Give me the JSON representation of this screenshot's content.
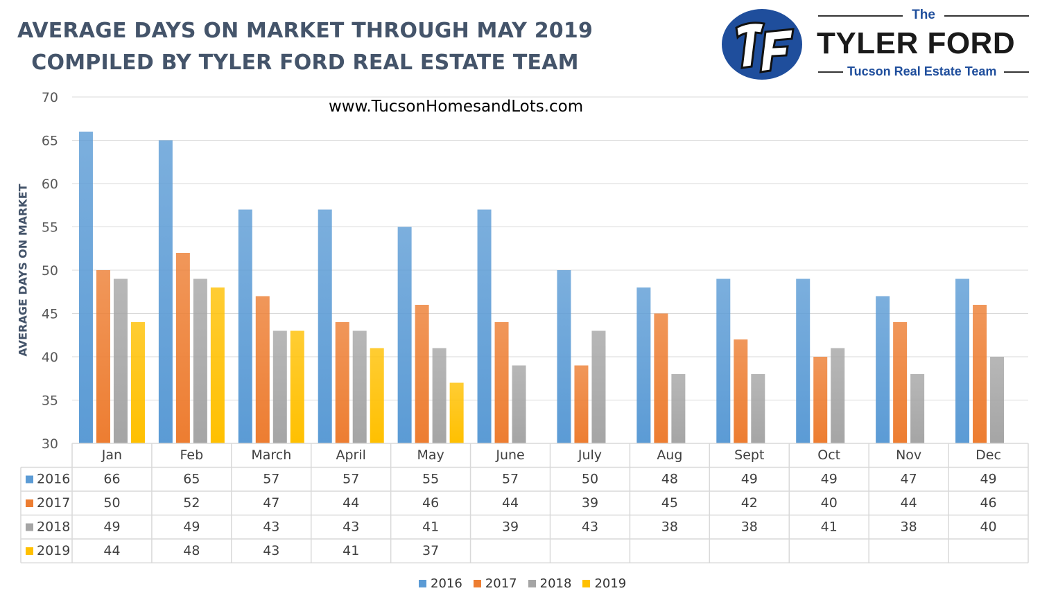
{
  "header": {
    "title_line1": "AVERAGE DAYS ON MARKET THROUGH MAY 2019",
    "title_line2": "COMPILED BY TYLER FORD REAL ESTATE TEAM",
    "website": "www.TucsonHomesandLots.com"
  },
  "brand": {
    "monogram": "TF",
    "the": "The",
    "name": "TYLER FORD",
    "subtitle": "Tucson Real Estate Team",
    "colors": {
      "circle": "#1f4e9c",
      "text_blue": "#1f4e9c",
      "name": "#1a1a1a"
    }
  },
  "chart_data": {
    "type": "bar",
    "ylabel": "AVERAGE DAYS ON MARKET",
    "xlabel": "",
    "ylim": [
      30,
      70
    ],
    "yticks": [
      30,
      35,
      40,
      45,
      50,
      55,
      60,
      65,
      70
    ],
    "grid": true,
    "legend_position": "bottom",
    "data_table": true,
    "categories": [
      "Jan",
      "Feb",
      "March",
      "April",
      "May",
      "June",
      "July",
      "Aug",
      "Sept",
      "Oct",
      "Nov",
      "Dec"
    ],
    "series": [
      {
        "name": "2016",
        "color": "#5b9bd5",
        "values": [
          66,
          65,
          57,
          57,
          55,
          57,
          50,
          48,
          49,
          49,
          47,
          49
        ]
      },
      {
        "name": "2017",
        "color": "#ed7d31",
        "values": [
          50,
          52,
          47,
          44,
          46,
          44,
          39,
          45,
          42,
          40,
          44,
          46
        ]
      },
      {
        "name": "2018",
        "color": "#a5a5a5",
        "values": [
          49,
          49,
          43,
          43,
          41,
          39,
          43,
          38,
          38,
          41,
          38,
          40
        ]
      },
      {
        "name": "2019",
        "color": "#ffc000",
        "values": [
          44,
          48,
          43,
          41,
          37,
          null,
          null,
          null,
          null,
          null,
          null,
          null
        ]
      }
    ]
  }
}
